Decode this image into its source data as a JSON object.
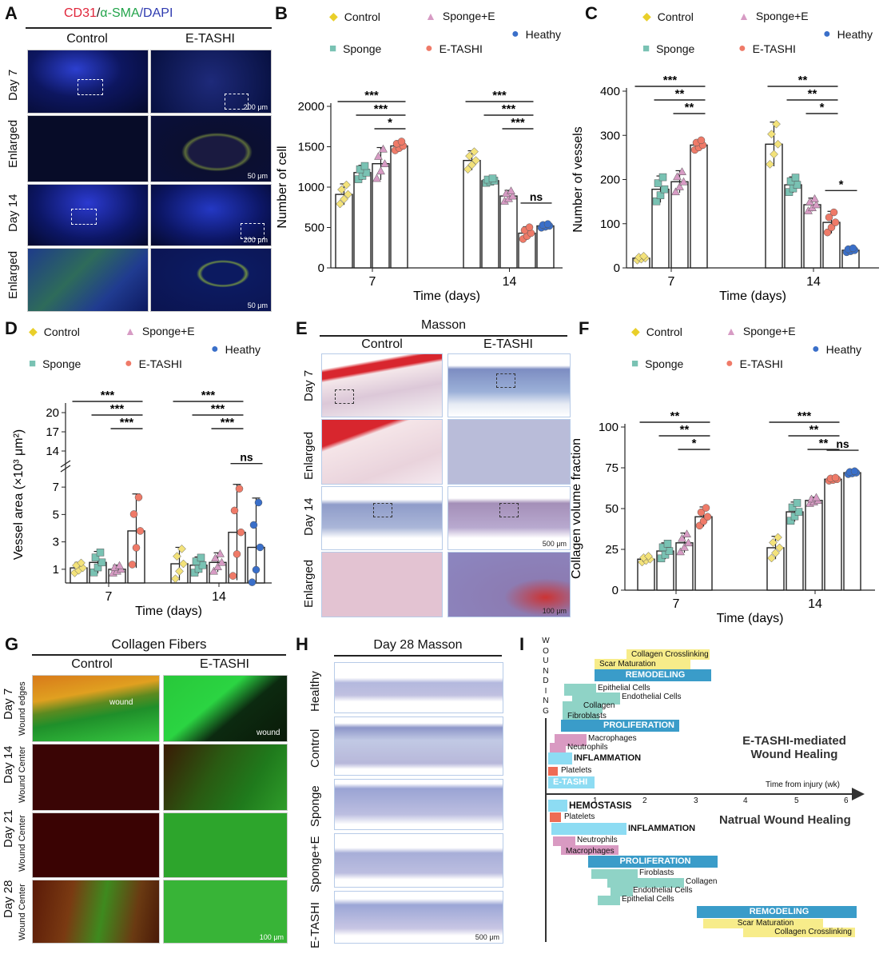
{
  "panel_letters": [
    "A",
    "B",
    "C",
    "D",
    "E",
    "F",
    "G",
    "H",
    "I"
  ],
  "panelA": {
    "title_parts": [
      "CD31",
      "/",
      "α-SMA",
      "/DAPI"
    ],
    "cols": [
      "Control",
      "E-TASHI"
    ],
    "rows": [
      "Day 7",
      "Enlarged",
      "Day 14",
      "Enlarged"
    ],
    "scalebars": [
      "200 μm",
      "50 μm",
      "200 μm",
      "50 μm"
    ]
  },
  "legend": {
    "control": "Control",
    "sponge_e": "Sponge+E",
    "sponge": "Sponge",
    "etashi": "E-TASHI",
    "healthy": "Heathy"
  },
  "colors": {
    "control": "#f3e27a",
    "sponge": "#79c2b3",
    "sponge_e": "#d79bc4",
    "etashi": "#ef7a68",
    "healthy": "#3a6fc9"
  },
  "chart_data": [
    {
      "id": "B",
      "type": "bar",
      "categories": [
        "7",
        "14"
      ],
      "xlabel": "Time (days)",
      "ylabel": "Number of cell",
      "ylim": [
        0,
        2000
      ],
      "yticks": [
        0,
        500,
        1000,
        1500,
        2000
      ],
      "series": [
        {
          "name": "Control",
          "values": [
            910,
            1330
          ],
          "err": [
            130,
            120
          ]
        },
        {
          "name": "Sponge",
          "values": [
            1180,
            1080
          ],
          "err": [
            90,
            30
          ]
        },
        {
          "name": "Sponge+E",
          "values": [
            1290,
            890
          ],
          "err": [
            200,
            70
          ]
        },
        {
          "name": "E-TASHI",
          "values": [
            1510,
            430
          ],
          "err": [
            60,
            80
          ]
        },
        {
          "name": "Heathy",
          "values": [
            null,
            520
          ],
          "err": [
            null,
            25
          ]
        }
      ],
      "sig": [
        {
          "group": 0,
          "from": 0,
          "to": 3,
          "label": "***"
        },
        {
          "group": 0,
          "from": 1,
          "to": 3,
          "label": "***"
        },
        {
          "group": 0,
          "from": 2,
          "to": 3,
          "label": "*"
        },
        {
          "group": 1,
          "from": 0,
          "to": 3,
          "label": "***"
        },
        {
          "group": 1,
          "from": 1,
          "to": 3,
          "label": "***"
        },
        {
          "group": 1,
          "from": 2,
          "to": 3,
          "label": "***"
        },
        {
          "group": 1,
          "from": 3,
          "to": 4,
          "label": "ns"
        }
      ]
    },
    {
      "id": "C",
      "type": "bar",
      "categories": [
        "7",
        "14"
      ],
      "xlabel": "Time (days)",
      "ylabel": "Number of vessels",
      "ylim": [
        0,
        400
      ],
      "yticks": [
        0,
        100,
        200,
        300,
        400
      ],
      "series": [
        {
          "name": "Control",
          "values": [
            22,
            280
          ],
          "err": [
            5,
            50
          ]
        },
        {
          "name": "Sponge",
          "values": [
            178,
            188
          ],
          "err": [
            30,
            18
          ]
        },
        {
          "name": "Sponge+E",
          "values": [
            195,
            143
          ],
          "err": [
            25,
            15
          ]
        },
        {
          "name": "E-TASHI",
          "values": [
            278,
            103
          ],
          "err": [
            12,
            25
          ]
        },
        {
          "name": "Heathy",
          "values": [
            null,
            40
          ],
          "err": [
            null,
            5
          ]
        }
      ],
      "sig": [
        {
          "group": 0,
          "from": 0,
          "to": 3,
          "label": "***"
        },
        {
          "group": 0,
          "from": 1,
          "to": 3,
          "label": "**"
        },
        {
          "group": 0,
          "from": 2,
          "to": 3,
          "label": "**"
        },
        {
          "group": 1,
          "from": 0,
          "to": 3,
          "label": "**"
        },
        {
          "group": 1,
          "from": 1,
          "to": 3,
          "label": "**"
        },
        {
          "group": 1,
          "from": 2,
          "to": 3,
          "label": "*"
        },
        {
          "group": 1,
          "from": 3,
          "to": 4,
          "label": "*"
        }
      ]
    },
    {
      "id": "D",
      "type": "bar",
      "categories": [
        "7",
        "14"
      ],
      "xlabel": "Time (days)",
      "ylabel": "Vessel area (×10³ μm²)",
      "yticks_low": [
        1,
        3,
        5,
        7
      ],
      "yticks_high": [
        14,
        17,
        20
      ],
      "series": [
        {
          "name": "Control",
          "values": [
            1.1,
            1.4
          ],
          "err": [
            0.4,
            1.2
          ]
        },
        {
          "name": "Sponge",
          "values": [
            1.5,
            1.3
          ],
          "err": [
            0.8,
            0.6
          ]
        },
        {
          "name": "Sponge+E",
          "values": [
            1.0,
            1.5
          ],
          "err": [
            0.3,
            0.7
          ]
        },
        {
          "name": "E-TASHI",
          "values": [
            3.8,
            3.7
          ],
          "err": [
            2.7,
            3.5
          ]
        },
        {
          "name": "Heathy",
          "values": [
            null,
            2.6
          ],
          "err": [
            null,
            3.6
          ]
        }
      ],
      "sig": [
        {
          "group": 0,
          "from": 0,
          "to": 3,
          "label": "***"
        },
        {
          "group": 0,
          "from": 1,
          "to": 3,
          "label": "***"
        },
        {
          "group": 0,
          "from": 2,
          "to": 3,
          "label": "***"
        },
        {
          "group": 1,
          "from": 0,
          "to": 3,
          "label": "***"
        },
        {
          "group": 1,
          "from": 1,
          "to": 3,
          "label": "***"
        },
        {
          "group": 1,
          "from": 2,
          "to": 3,
          "label": "***"
        },
        {
          "group": 1,
          "from": 3,
          "to": 4,
          "label": "ns"
        }
      ]
    },
    {
      "id": "F",
      "type": "bar",
      "categories": [
        "7",
        "14"
      ],
      "xlabel": "Time (days)",
      "ylabel": "Collagen volume fraction",
      "ylim": [
        0,
        100
      ],
      "yticks": [
        0,
        25,
        50,
        75,
        100
      ],
      "series": [
        {
          "name": "Control",
          "values": [
            19,
            26
          ],
          "err": [
            2,
            7
          ]
        },
        {
          "name": "Sponge",
          "values": [
            24,
            48
          ],
          "err": [
            5,
            6
          ]
        },
        {
          "name": "Sponge+E",
          "values": [
            29,
            55
          ],
          "err": [
            6,
            2
          ]
        },
        {
          "name": "E-TASHI",
          "values": [
            45,
            68
          ],
          "err": [
            6,
            1
          ]
        },
        {
          "name": "Heathy",
          "values": [
            null,
            72
          ],
          "err": [
            null,
            1
          ]
        }
      ],
      "sig": [
        {
          "group": 0,
          "from": 0,
          "to": 3,
          "label": "**"
        },
        {
          "group": 0,
          "from": 1,
          "to": 3,
          "label": "**"
        },
        {
          "group": 0,
          "from": 2,
          "to": 3,
          "label": "*"
        },
        {
          "group": 1,
          "from": 0,
          "to": 3,
          "label": "***"
        },
        {
          "group": 1,
          "from": 1,
          "to": 3,
          "label": "**"
        },
        {
          "group": 1,
          "from": 2,
          "to": 3,
          "label": "**"
        },
        {
          "group": 1,
          "from": 3,
          "to": 4,
          "label": "ns"
        }
      ]
    }
  ],
  "panelE": {
    "title": "Masson",
    "cols": [
      "Control",
      "E-TASHI"
    ],
    "rows": [
      "Day 7",
      "Enlarged",
      "Day 14",
      "Enlarged"
    ],
    "scalebars": [
      "500 μm",
      "100 μm"
    ]
  },
  "panelG": {
    "title": "Collagen Fibers",
    "cols": [
      "Control",
      "E-TASHI"
    ],
    "rows": [
      "Day 7",
      "Day 14",
      "Day 21",
      "Day 28"
    ],
    "sublabels": [
      "Wound edges",
      "Wound Center",
      "Wound Center",
      "Wound Center"
    ],
    "wound_label": "wound",
    "scalebar": "100 μm"
  },
  "panelH": {
    "title": "Day 28 Masson",
    "rows": [
      "Healthy",
      "Control",
      "Sponge",
      "Sponge+E",
      "E-TASHI"
    ],
    "scalebar": "500 μm"
  },
  "panelI": {
    "wounding": [
      "W",
      "O",
      "U",
      "N",
      "D",
      "I",
      "N",
      "G"
    ],
    "axis_label": "Time from injury (wk)",
    "ticks": [
      "1",
      "2",
      "3",
      "4",
      "5",
      "6"
    ],
    "top_title_1": "E-TASHI-mediated",
    "top_title_2": "Wound Healing",
    "bottom_title": "Natrual Wound Healing",
    "top": {
      "collagen_crosslinking": "Collagen Crosslinking",
      "scar_maturation": "Scar Maturation",
      "remodeling": "REMODELING",
      "epithelial": "Epithelial Cells",
      "endothelial": "Endothelial Cells",
      "collagen": "Collagen",
      "fibroblasts": "Fibroblasts",
      "proliferation": "PROLIFERATION",
      "macrophages": "Macrophages",
      "neutrophils": "Neutrophils",
      "inflammation": "INFLAMMATION",
      "platelets": "Platelets",
      "etashi": "E-TASHI"
    },
    "bottom": {
      "hemostasis": "HEMOSTASIS",
      "platelets": "Platelets",
      "inflammation": "INFLAMMATION",
      "neutrophils": "Neutrophils",
      "macrophages": "Macrophages",
      "proliferation": "PROLIFERATION",
      "fibroblasts": "Firoblasts",
      "collagen": "Collagen",
      "endothelial": "Endothelial Cells",
      "epithelial": "Epithelial Cells",
      "remodeling": "REMODELING",
      "scar_maturation": "Scar Maturation",
      "collagen_crosslinking": "Collagen Crosslinking"
    }
  }
}
